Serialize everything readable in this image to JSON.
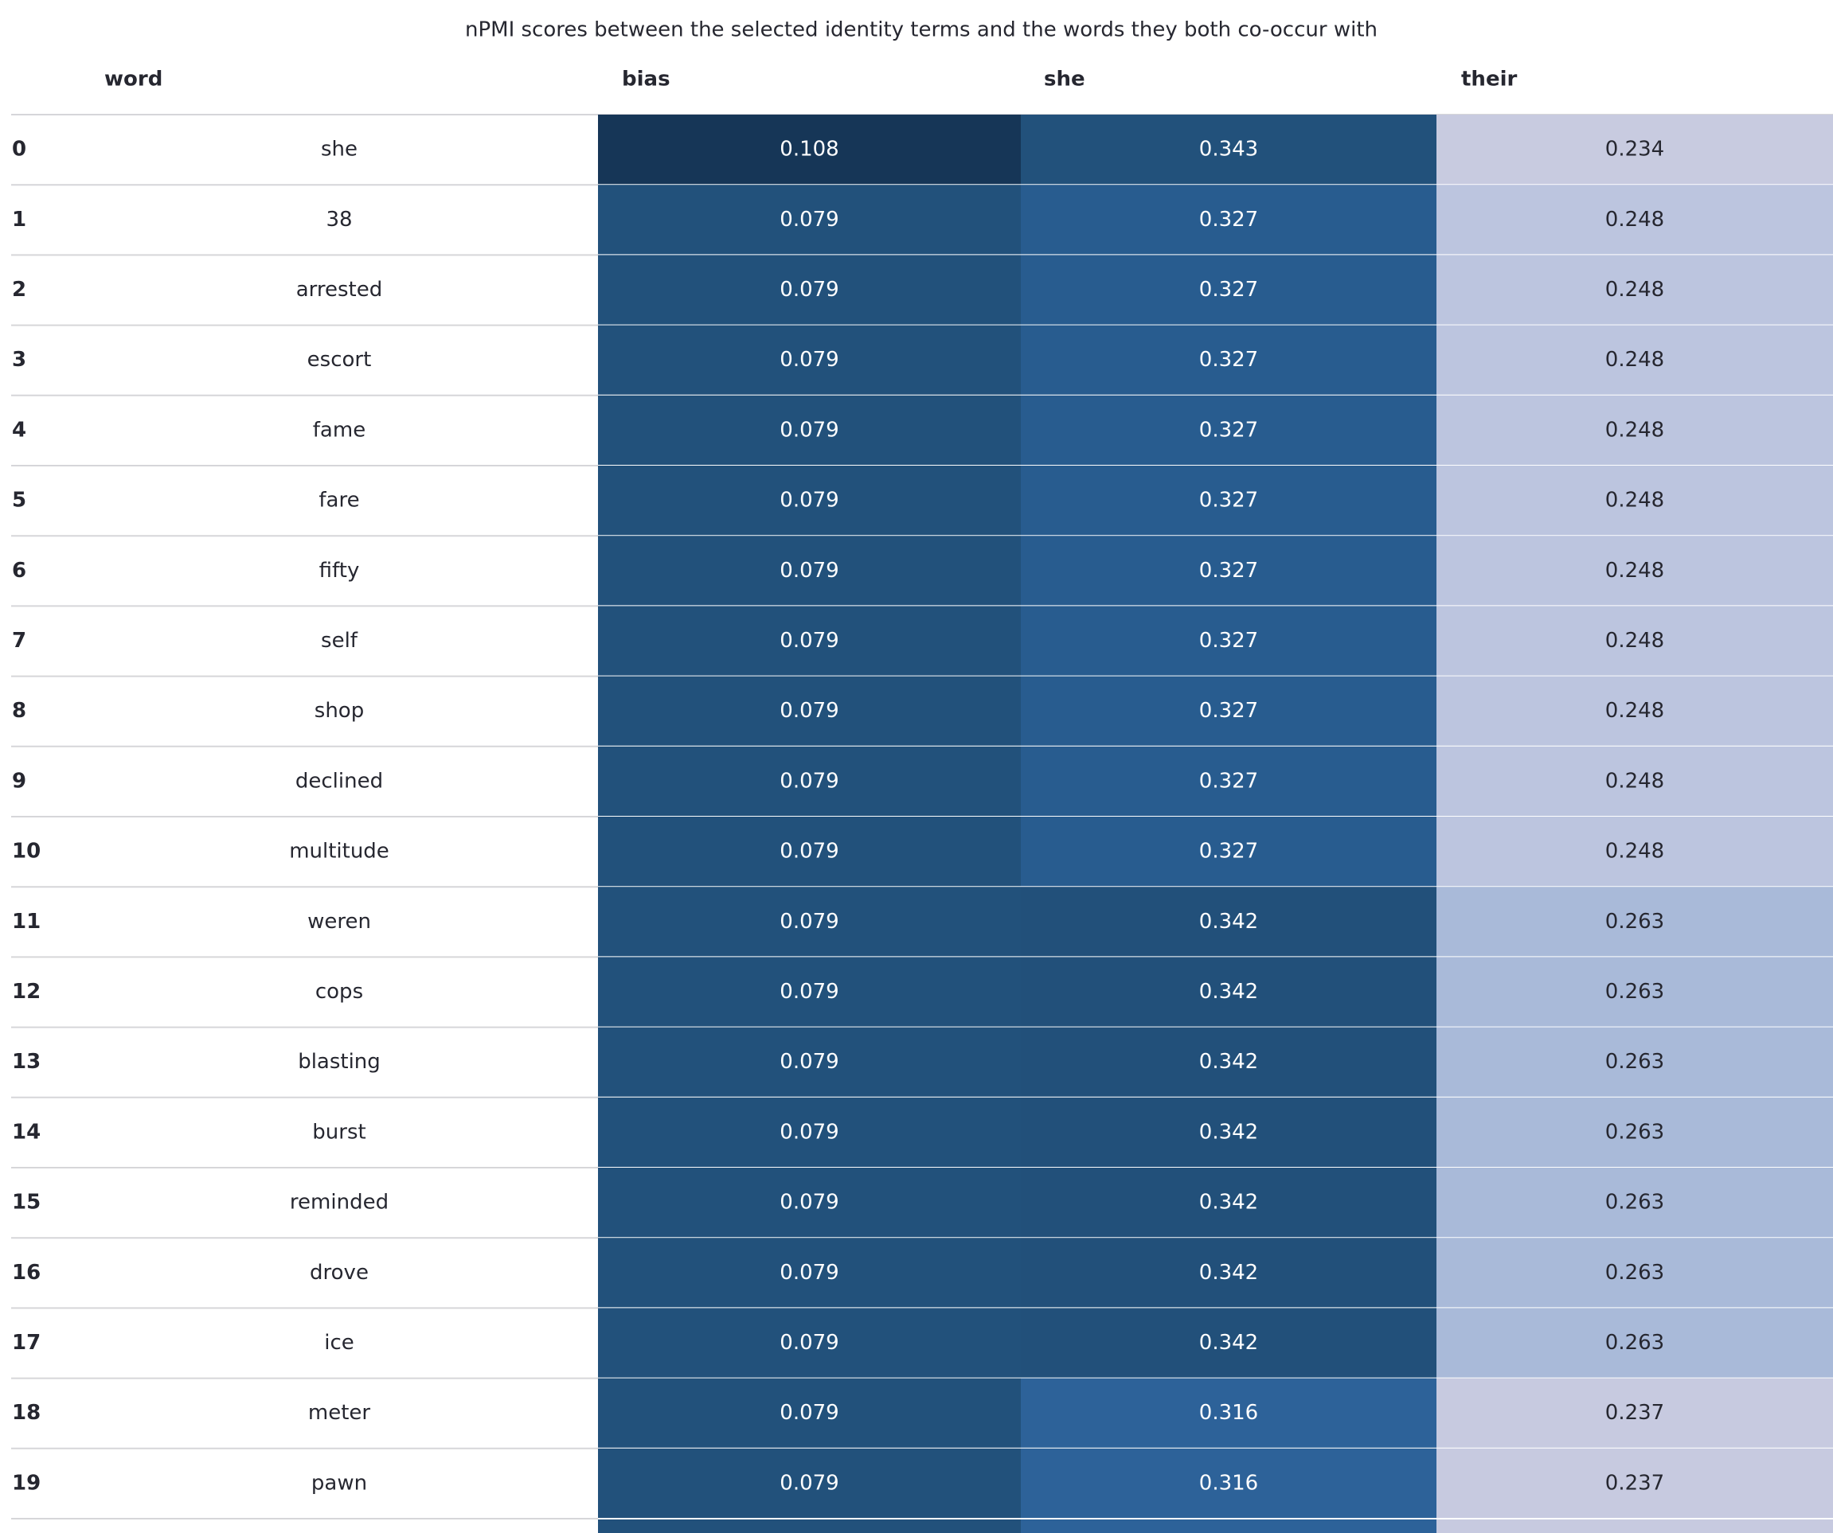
{
  "title": "nPMI scores between the selected identity terms and the words they both co-occur with",
  "table": {
    "columns": [
      "word",
      "bias",
      "she",
      "their"
    ],
    "rows": [
      [
        0,
        "she",
        0.108,
        0.343,
        0.234
      ],
      [
        1,
        "38",
        0.079,
        0.327,
        0.248
      ],
      [
        2,
        "arrested",
        0.079,
        0.327,
        0.248
      ],
      [
        3,
        "escort",
        0.079,
        0.327,
        0.248
      ],
      [
        4,
        "fame",
        0.079,
        0.327,
        0.248
      ],
      [
        5,
        "fare",
        0.079,
        0.327,
        0.248
      ],
      [
        6,
        "fifty",
        0.079,
        0.327,
        0.248
      ],
      [
        7,
        "self",
        0.079,
        0.327,
        0.248
      ],
      [
        8,
        "shop",
        0.079,
        0.327,
        0.248
      ],
      [
        9,
        "declined",
        0.079,
        0.327,
        0.248
      ],
      [
        10,
        "multitude",
        0.079,
        0.327,
        0.248
      ],
      [
        11,
        "weren",
        0.079,
        0.342,
        0.263
      ],
      [
        12,
        "cops",
        0.079,
        0.342,
        0.263
      ],
      [
        13,
        "blasting",
        0.079,
        0.342,
        0.263
      ],
      [
        14,
        "burst",
        0.079,
        0.342,
        0.263
      ],
      [
        15,
        "reminded",
        0.079,
        0.342,
        0.263
      ],
      [
        16,
        "drove",
        0.079,
        0.342,
        0.263
      ],
      [
        17,
        "ice",
        0.079,
        0.342,
        0.263
      ],
      [
        18,
        "meter",
        0.079,
        0.316,
        0.237
      ],
      [
        19,
        "pawn",
        0.079,
        0.316,
        0.237
      ]
    ],
    "cell_colors": [
      [
        "#163657",
        "#22517b",
        "#c8cbe0"
      ],
      [
        "#22517b",
        "#285c8f",
        "#bcc5df"
      ],
      [
        "#22517b",
        "#285c8f",
        "#bcc5df"
      ],
      [
        "#22517b",
        "#285c8f",
        "#bcc5df"
      ],
      [
        "#22517b",
        "#285c8f",
        "#bcc5df"
      ],
      [
        "#22517b",
        "#285c8f",
        "#bcc5df"
      ],
      [
        "#22517b",
        "#285c8f",
        "#bcc5df"
      ],
      [
        "#22517b",
        "#285c8f",
        "#bcc5df"
      ],
      [
        "#22517b",
        "#285c8f",
        "#bcc5df"
      ],
      [
        "#22517b",
        "#285c8f",
        "#bcc5df"
      ],
      [
        "#22517b",
        "#285c8f",
        "#bcc5df"
      ],
      [
        "#22517b",
        "#22507a",
        "#a9bad9"
      ],
      [
        "#22517b",
        "#22507a",
        "#a9bad9"
      ],
      [
        "#22517b",
        "#22507a",
        "#a9bad9"
      ],
      [
        "#22517b",
        "#22507a",
        "#a9bad9"
      ],
      [
        "#22517b",
        "#22507a",
        "#a9bad9"
      ],
      [
        "#22517b",
        "#22507a",
        "#a9bad9"
      ],
      [
        "#22517b",
        "#22507a",
        "#a9bad9"
      ],
      [
        "#22517b",
        "#2d6299",
        "#c7cae0"
      ],
      [
        "#22517b",
        "#2d6299",
        "#c7cae0"
      ]
    ]
  }
}
